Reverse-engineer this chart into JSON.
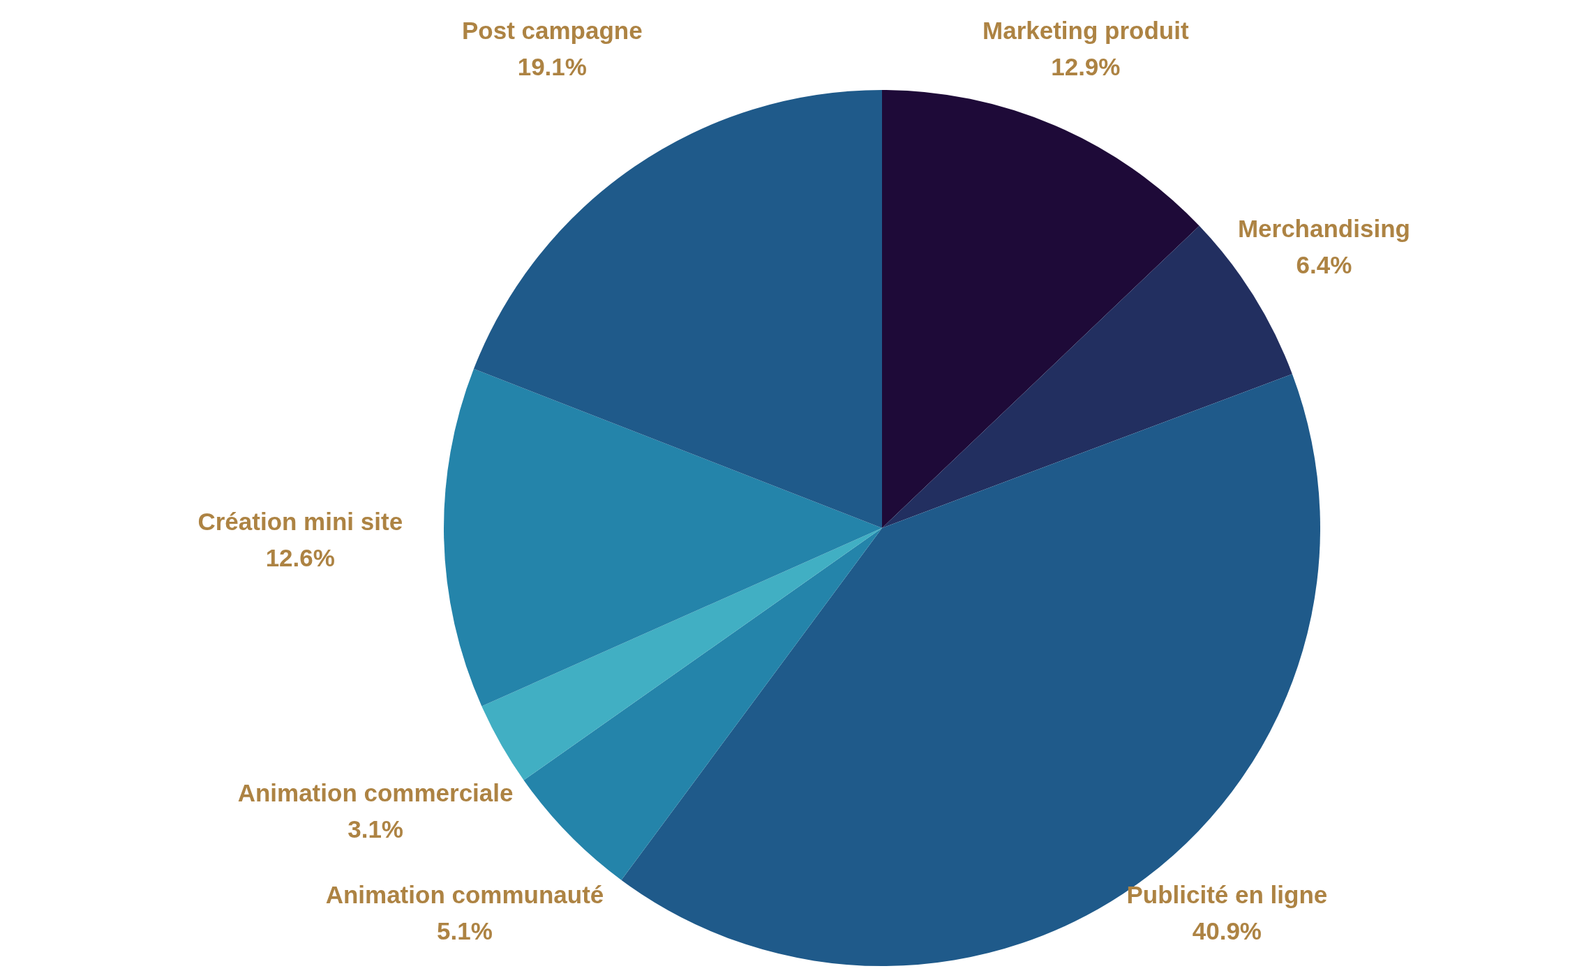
{
  "chart_data": {
    "type": "pie",
    "categories": [
      "Marketing produit",
      "Merchandising",
      "Publicité en ligne",
      "Animation communauté",
      "Animation commerciale",
      "Création mini site",
      "Post campagne"
    ],
    "values": [
      12.9,
      6.4,
      40.9,
      5.1,
      3.1,
      12.6,
      19.1
    ],
    "value_labels": [
      "12.9%",
      "6.4%",
      "40.9%",
      "5.1%",
      "3.1%",
      "12.6%",
      "19.1%"
    ],
    "colors": [
      "#1e0a38",
      "#222f60",
      "#1f5a8a",
      "#2484aa",
      "#41afc3",
      "#2484aa",
      "#1f5a8a"
    ]
  }
}
